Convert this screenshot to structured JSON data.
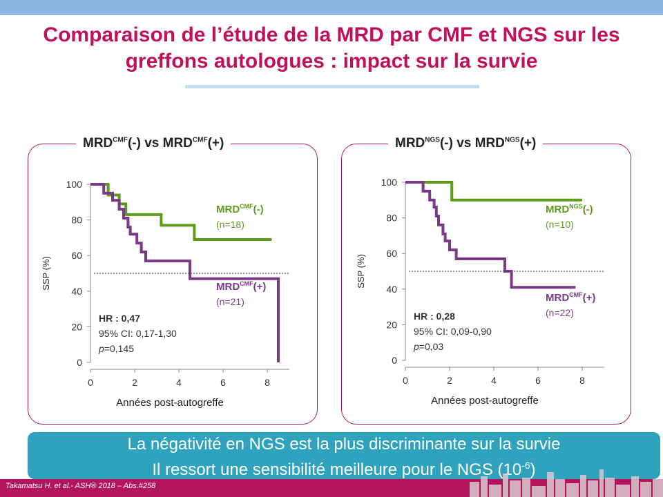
{
  "title": {
    "line1": "Comparaison de l’étude de la MRD par CMF et NGS sur les",
    "line2": "greffons autologues : impact sur la survie"
  },
  "banner": {
    "line1": "La négativité en NGS est la plus discriminante sur la survie",
    "line2_main": "Il ressort une sensibilité meilleure pour le NGS (10",
    "line2_exp": "-6",
    "line2_close": ")"
  },
  "footer": {
    "citation": "Takamatsu H. et al.- ASH® 2018 – Abs.#258"
  },
  "panels": [
    {
      "heading": {
        "a": "MRD",
        "a_sup": "CMF",
        "b": "(-) vs MRD",
        "b_sup": "CMF",
        "c": "(+)"
      },
      "stats": {
        "hr": "HR : 0,47",
        "ci": "95% CI: 0,17-1,30",
        "p_label": "p",
        "p_value": "=0,145"
      },
      "legend": [
        {
          "label": "MRD",
          "sup": "CMF",
          "suffix": "(-)",
          "n": "(n=18)",
          "color": "#5d9b1a"
        },
        {
          "label": "MRD",
          "sup": "CMF",
          "suffix": "(+)",
          "n": "(n=21)",
          "color": "#7a3a87"
        }
      ]
    },
    {
      "heading": {
        "a": "MRD",
        "a_sup": "NGS",
        "b": "(-) vs MRD",
        "b_sup": "NGS",
        "c": "(+)"
      },
      "stats": {
        "hr": "HR : 0,28",
        "ci": "95% CI: 0,09-0,90",
        "p_label": "p",
        "p_value": "=0,03"
      },
      "legend": [
        {
          "label": "MRD",
          "sup": "NGS",
          "suffix": "(-)",
          "n": "(n=10)",
          "color": "#5d9b1a"
        },
        {
          "label": "MRD",
          "sup": "CMF",
          "suffix": "(+)",
          "n": "(n=22)",
          "color": "#7a3a87"
        }
      ]
    }
  ],
  "chart_data": [
    {
      "type": "line",
      "step": true,
      "xlabel": "Années post-autogreffe",
      "ylabel": "SSP (%)",
      "xlim": [
        0,
        9
      ],
      "ylim": [
        0,
        100
      ],
      "xticks": [
        "0",
        "2",
        "4",
        "6",
        "8"
      ],
      "yticks": [
        "0",
        "20",
        "40",
        "60",
        "80",
        "100"
      ],
      "median_line": 50,
      "series": [
        {
          "name": "MRDCMF(-)",
          "color": "#5d9b1a",
          "x": [
            0,
            0.8,
            1.3,
            1.6,
            2.0,
            3.2,
            4.7,
            8.2
          ],
          "y": [
            100,
            94,
            89,
            83,
            83,
            77,
            69,
            69
          ]
        },
        {
          "name": "MRDCMF(+)",
          "color": "#7a3a87",
          "x": [
            0,
            0.6,
            1.0,
            1.3,
            1.5,
            1.7,
            1.8,
            2.1,
            2.3,
            2.5,
            4.5,
            8.5,
            8.5
          ],
          "y": [
            100,
            95,
            91,
            86,
            81,
            76,
            72,
            67,
            62,
            57,
            47,
            47,
            0
          ]
        }
      ]
    },
    {
      "type": "line",
      "step": true,
      "xlabel": "Années post-autogreffe",
      "ylabel": "SSP (%)",
      "xlim": [
        0,
        9
      ],
      "ylim": [
        0,
        100
      ],
      "xticks": [
        "0",
        "2",
        "4",
        "6",
        "8"
      ],
      "yticks": [
        "0",
        "20",
        "40",
        "60",
        "80",
        "100"
      ],
      "median_line": 50,
      "series": [
        {
          "name": "MRDNGS(-)",
          "color": "#5d9b1a",
          "x": [
            0,
            2.1,
            8.0
          ],
          "y": [
            100,
            90,
            90
          ]
        },
        {
          "name": "MRDCMF(+)",
          "color": "#7a3a87",
          "x": [
            0,
            0.8,
            1.1,
            1.3,
            1.4,
            1.5,
            1.7,
            1.8,
            2.0,
            2.3,
            2.5,
            4.5,
            4.8,
            7.7
          ],
          "y": [
            100,
            95,
            90,
            86,
            81,
            76,
            71,
            67,
            62,
            57,
            57,
            50,
            41,
            41
          ]
        }
      ]
    }
  ]
}
